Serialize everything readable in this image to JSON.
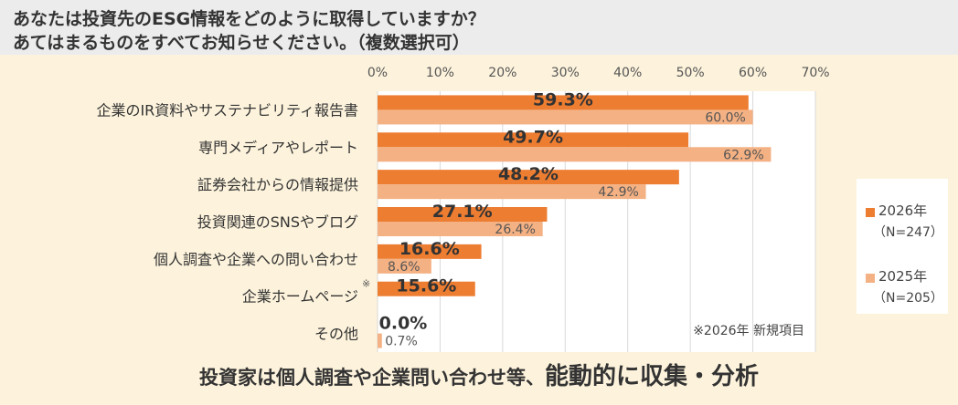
{
  "header": {
    "line1": "あなたは投資先のESG情報をどのように取得していますか？",
    "line2": "あてはまるものをすべてお知らせください。（複数選択可）"
  },
  "colors": {
    "series2026": "#ed7d31",
    "series2025": "#f4b183",
    "plot_bg": "#ffffff"
  },
  "legend": {
    "items": [
      {
        "label": "2026年",
        "n": "（N=247）"
      },
      {
        "label": "2025年",
        "n": "（N=205）"
      }
    ]
  },
  "chart_data": {
    "type": "bar",
    "orientation": "horizontal",
    "xlim": [
      0,
      70
    ],
    "ticks": [
      "0%",
      "10%",
      "20%",
      "30%",
      "40%",
      "50%",
      "60%",
      "70%"
    ],
    "tick_values": [
      0,
      10,
      20,
      30,
      40,
      50,
      60,
      70
    ],
    "categories": [
      "企業のIR資料やサステナビリティ報告書",
      "専門メディアやレポート",
      "証券会社からの情報提供",
      "投資関連のSNSやブログ",
      "個人調査や企業への問い合わせ",
      "企業ホームページ",
      "その他"
    ],
    "category_marks": [
      "",
      "",
      "",
      "",
      "",
      "※",
      ""
    ],
    "series": [
      {
        "name": "2026年",
        "values": [
          59.3,
          49.7,
          48.2,
          27.1,
          16.6,
          15.6,
          0.0
        ],
        "labels": [
          "59.3%",
          "49.7%",
          "48.2%",
          "27.1%",
          "16.6%",
          "15.6%",
          "0.0%"
        ]
      },
      {
        "name": "2025年",
        "values": [
          60.0,
          62.9,
          42.9,
          26.4,
          8.6,
          null,
          0.7
        ],
        "labels": [
          "60.0%",
          "62.9%",
          "42.9%",
          "26.4%",
          "8.6%",
          "",
          "0.7%"
        ]
      }
    ],
    "note": "※2026年 新規項目"
  },
  "footer": {
    "part1": "投資家は個人調査や企業問い合わせ等、",
    "part2": "能動的に収集・分析"
  }
}
